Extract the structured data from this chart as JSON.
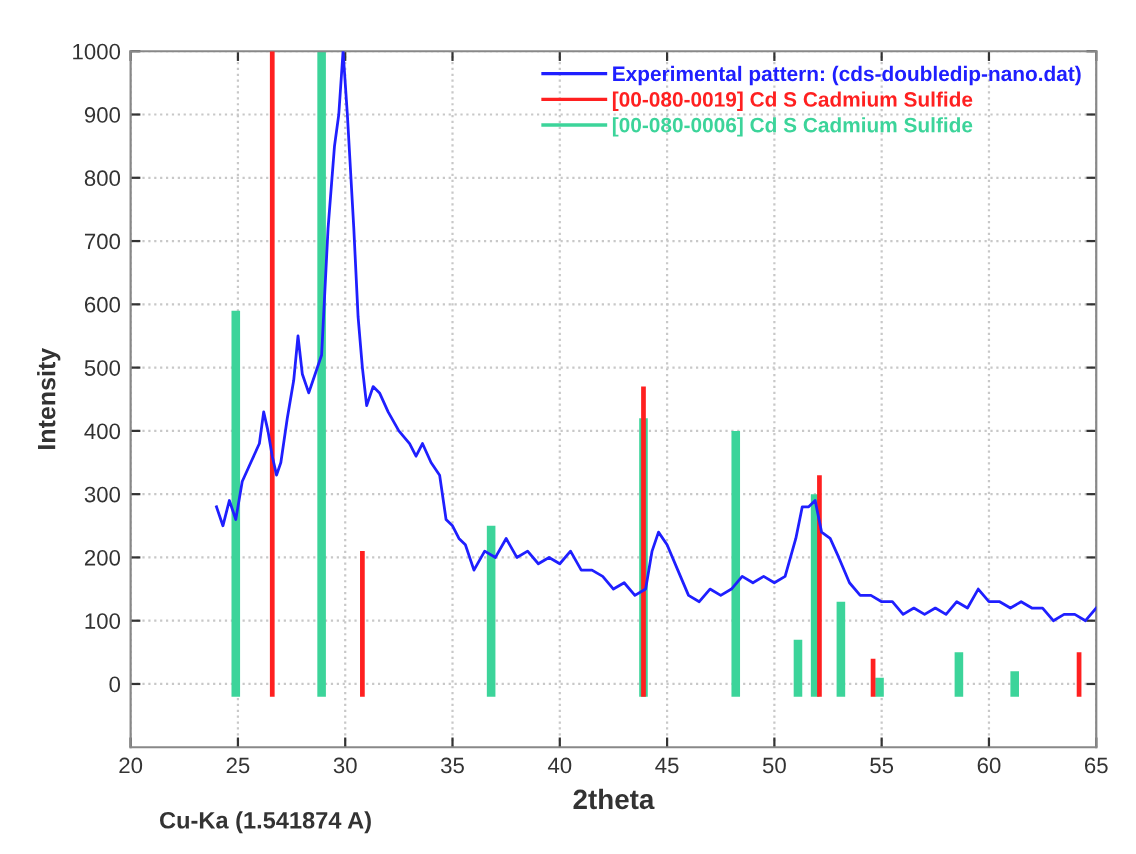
{
  "chart_data": {
    "type": "line",
    "xlabel": "2theta",
    "ylabel": "Intensity",
    "annotations": [
      "Cu-Ka (1.541874 A)"
    ],
    "xlim": [
      20,
      65
    ],
    "xticks": [
      20,
      25,
      30,
      35,
      40,
      45,
      50,
      55,
      60,
      65
    ],
    "ylim": [
      -100,
      1000
    ],
    "yticks": [
      0,
      100,
      200,
      300,
      400,
      500,
      600,
      700,
      800,
      900,
      1000
    ],
    "grid": true,
    "legend": "top right",
    "marker": "none",
    "line_style": "solid",
    "series": [
      {
        "name": "Experimental pattern: (cds-doubledip-nano.dat)",
        "color": "#1f1fff",
        "x": [
          24.0,
          24.3,
          24.6,
          24.9,
          25.2,
          25.6,
          26.0,
          26.2,
          26.4,
          26.6,
          26.8,
          27.0,
          27.3,
          27.6,
          27.8,
          28.0,
          28.3,
          28.6,
          28.9,
          29.2,
          29.5,
          29.7,
          29.9,
          30.1,
          30.4,
          30.6,
          30.8,
          31.0,
          31.3,
          31.6,
          32.0,
          32.5,
          33.0,
          33.3,
          33.6,
          34.0,
          34.4,
          34.7,
          35.0,
          35.3,
          35.6,
          36.0,
          36.5,
          37.0,
          37.5,
          38.0,
          38.5,
          39.0,
          39.5,
          40.0,
          40.5,
          41.0,
          41.5,
          42.0,
          42.5,
          43.0,
          43.5,
          44.0,
          44.3,
          44.6,
          45.0,
          45.5,
          46.0,
          46.5,
          47.0,
          47.5,
          48.0,
          48.5,
          49.0,
          49.5,
          50.0,
          50.5,
          51.0,
          51.3,
          51.6,
          51.9,
          52.2,
          52.6,
          53.0,
          53.5,
          54.0,
          54.5,
          55.0,
          55.5,
          56.0,
          56.5,
          57.0,
          57.5,
          58.0,
          58.5,
          59.0,
          59.5,
          60.0,
          60.5,
          61.0,
          61.5,
          62.0,
          62.5,
          63.0,
          63.5,
          64.0,
          64.5,
          65.0
        ],
        "values": [
          280,
          250,
          290,
          260,
          320,
          350,
          380,
          430,
          400,
          360,
          330,
          350,
          420,
          480,
          550,
          490,
          460,
          490,
          520,
          720,
          850,
          900,
          1000,
          900,
          720,
          580,
          500,
          440,
          470,
          460,
          430,
          400,
          380,
          360,
          380,
          350,
          330,
          260,
          250,
          230,
          220,
          180,
          210,
          200,
          230,
          200,
          210,
          190,
          200,
          190,
          210,
          180,
          180,
          170,
          150,
          160,
          140,
          150,
          210,
          240,
          220,
          180,
          140,
          130,
          150,
          140,
          150,
          170,
          160,
          170,
          160,
          170,
          230,
          280,
          280,
          290,
          240,
          230,
          200,
          160,
          140,
          140,
          130,
          130,
          110,
          120,
          110,
          120,
          110,
          130,
          120,
          150,
          130,
          130,
          120,
          130,
          120,
          120,
          100,
          110,
          110,
          100,
          120
        ]
      },
      {
        "name": "[00-080-0019] Cd S Cadmium Sulfide",
        "type": "bar",
        "color": "#ff2020",
        "x": [
          26.6,
          30.8,
          43.9,
          52.1,
          54.6,
          64.2
        ],
        "base": [
          -20,
          -20,
          -20,
          -20,
          -20,
          -20
        ],
        "values": [
          1020,
          230,
          490,
          350,
          60,
          70
        ]
      },
      {
        "name": "[00-080-0006] Cd S Cadmium Sulfide",
        "type": "bar",
        "color": "#3cd49a",
        "x": [
          24.9,
          28.9,
          36.8,
          43.9,
          48.2,
          51.1,
          51.9,
          53.1,
          54.9,
          58.6,
          61.2
        ],
        "base": [
          -20,
          -20,
          -20,
          -20,
          -20,
          -20,
          -20,
          -20,
          -20,
          -20,
          -20
        ],
        "values": [
          610,
          1020,
          270,
          440,
          420,
          90,
          320,
          150,
          30,
          70,
          40
        ]
      }
    ]
  }
}
